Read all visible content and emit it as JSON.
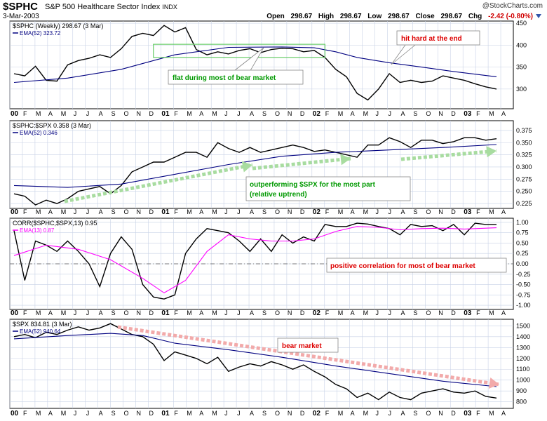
{
  "header": {
    "ticker": "$SPHC",
    "name": "S&P 500 Healthcare Sector Index",
    "index_tag": "INDX",
    "watermark": "@StockCharts.com",
    "date": "3-Mar-2003",
    "open_label": "Open",
    "open": "298.67",
    "high_label": "High",
    "high": "298.67",
    "low_label": "Low",
    "low": "298.67",
    "close_label": "Close",
    "close": "298.67",
    "chg_label": "Chg",
    "chg": "-2.42 (-0.80%)"
  },
  "colors": {
    "bg": "#ffffff",
    "grid": "#c8d2e6",
    "line": "#000000",
    "ema": "#000080",
    "ema_pink": "#ff00ff",
    "annot_green": "#009900",
    "annot_red": "#dd0000",
    "arrow_green": "#a8dca0",
    "arrow_red": "#f2aaaa",
    "box_green": "#66cc66"
  },
  "x_axis": {
    "labels": [
      "00",
      "F",
      "M",
      "A",
      "M",
      "J",
      "J",
      "A",
      "S",
      "O",
      "N",
      "D",
      "01",
      "F",
      "M",
      "A",
      "M",
      "J",
      "J",
      "A",
      "S",
      "O",
      "N",
      "D",
      "02",
      "F",
      "M",
      "A",
      "M",
      "J",
      "J",
      "A",
      "S",
      "O",
      "N",
      "D",
      "03",
      "F",
      "M",
      "A"
    ],
    "bold": [
      "00",
      "01",
      "02",
      "03"
    ]
  },
  "panels": {
    "price": {
      "legend1": "$SPHC (Weekly) 298.67 (3 Mar)",
      "legend2": "EMA(52) 323.72",
      "yticks": [
        "450",
        "400",
        "350",
        "300"
      ],
      "annot_flat": "flat during most of bear market",
      "annot_hit": "hit hard at the end"
    },
    "ratio": {
      "legend1": "$SPHC:$SPX 0.358 (3 Mar)",
      "legend2": "EMA(52) 0.346",
      "yticks": [
        "0.375",
        "0.350",
        "0.325",
        "0.300",
        "0.275",
        "0.250",
        "0.225"
      ],
      "annot1": "outperforming $SPX for the most part",
      "annot2": "(relative uptrend)"
    },
    "corr": {
      "legend1": "CORR($SPHC,$SPX,13) 0.95",
      "legend2": "EMA(13) 0.87",
      "yticks": [
        "1.00",
        "0.75",
        "0.50",
        "0.25",
        "0.00",
        "-0.25",
        "-0.50",
        "-0.75",
        "-1.00"
      ],
      "annot": "positive correlation for most of bear market"
    },
    "spx": {
      "legend1": "$SPX 834.81 (3 Mar)",
      "legend2": "EMA(52) 940.64",
      "yticks": [
        "1500",
        "1400",
        "1300",
        "1200",
        "1100",
        "1000",
        "900",
        "800"
      ],
      "annot": "bear market"
    }
  },
  "chart_data": [
    {
      "type": "line",
      "title": "$SPHC (Weekly) S&P 500 Healthcare Sector Index",
      "ylim": [
        255,
        455
      ],
      "series": [
        {
          "name": "$SPHC",
          "points": [
            [
              0,
              335
            ],
            [
              1,
              330
            ],
            [
              2,
              352
            ],
            [
              3,
              320
            ],
            [
              4,
              318
            ],
            [
              5,
              355
            ],
            [
              6,
              365
            ],
            [
              7,
              370
            ],
            [
              8,
              378
            ],
            [
              9,
              372
            ],
            [
              10,
              392
            ],
            [
              11,
              420
            ],
            [
              12,
              427
            ],
            [
              13,
              422
            ],
            [
              14,
              445
            ],
            [
              15,
              430
            ],
            [
              16,
              440
            ],
            [
              17,
              390
            ],
            [
              18,
              378
            ],
            [
              19,
              385
            ],
            [
              20,
              380
            ],
            [
              21,
              388
            ],
            [
              22,
              392
            ],
            [
              23,
              383
            ],
            [
              24,
              390
            ],
            [
              25,
              393
            ],
            [
              26,
              392
            ],
            [
              27,
              385
            ],
            [
              28,
              388
            ],
            [
              29,
              372
            ],
            [
              30,
              345
            ],
            [
              31,
              328
            ],
            [
              32,
              290
            ],
            [
              33,
              275
            ],
            [
              34,
              300
            ],
            [
              35,
              335
            ],
            [
              36,
              315
            ],
            [
              37,
              320
            ],
            [
              38,
              315
            ],
            [
              39,
              318
            ],
            [
              40,
              330
            ],
            [
              41,
              325
            ],
            [
              42,
              320
            ],
            [
              43,
              312
            ],
            [
              44,
              305
            ],
            [
              45,
              300
            ]
          ]
        },
        {
          "name": "EMA(52)",
          "points": [
            [
              0,
              315
            ],
            [
              5,
              325
            ],
            [
              10,
              345
            ],
            [
              15,
              378
            ],
            [
              20,
              395
            ],
            [
              25,
              396
            ],
            [
              28,
              394
            ],
            [
              30,
              385
            ],
            [
              32,
              372
            ],
            [
              35,
              360
            ],
            [
              38,
              350
            ],
            [
              41,
              340
            ],
            [
              45,
              328
            ]
          ]
        }
      ],
      "annotations": [
        "flat during most of bear market",
        "hit hard at the end"
      ]
    },
    {
      "type": "line",
      "title": "$SPHC:$SPX",
      "ylim": [
        0.215,
        0.395
      ],
      "series": [
        {
          "name": "$SPHC:$SPX",
          "points": [
            [
              0,
              0.245
            ],
            [
              1,
              0.24
            ],
            [
              2,
              0.222
            ],
            [
              3,
              0.232
            ],
            [
              4,
              0.225
            ],
            [
              5,
              0.235
            ],
            [
              6,
              0.25
            ],
            [
              7,
              0.255
            ],
            [
              8,
              0.26
            ],
            [
              9,
              0.245
            ],
            [
              10,
              0.262
            ],
            [
              11,
              0.29
            ],
            [
              12,
              0.3
            ],
            [
              13,
              0.31
            ],
            [
              14,
              0.31
            ],
            [
              15,
              0.32
            ],
            [
              16,
              0.33
            ],
            [
              17,
              0.33
            ],
            [
              18,
              0.32
            ],
            [
              19,
              0.35
            ],
            [
              20,
              0.338
            ],
            [
              21,
              0.33
            ],
            [
              22,
              0.34
            ],
            [
              23,
              0.33
            ],
            [
              24,
              0.335
            ],
            [
              25,
              0.34
            ],
            [
              26,
              0.345
            ],
            [
              27,
              0.34
            ],
            [
              28,
              0.332
            ],
            [
              29,
              0.335
            ],
            [
              30,
              0.33
            ],
            [
              31,
              0.325
            ],
            [
              32,
              0.32
            ],
            [
              33,
              0.345
            ],
            [
              34,
              0.345
            ],
            [
              35,
              0.36
            ],
            [
              36,
              0.352
            ],
            [
              37,
              0.34
            ],
            [
              38,
              0.355
            ],
            [
              39,
              0.355
            ],
            [
              40,
              0.348
            ],
            [
              41,
              0.352
            ],
            [
              42,
              0.36
            ],
            [
              43,
              0.36
            ],
            [
              44,
              0.355
            ],
            [
              45,
              0.358
            ]
          ]
        },
        {
          "name": "EMA(52)",
          "points": [
            [
              0,
              0.262
            ],
            [
              5,
              0.258
            ],
            [
              10,
              0.265
            ],
            [
              15,
              0.285
            ],
            [
              20,
              0.305
            ],
            [
              25,
              0.322
            ],
            [
              30,
              0.33
            ],
            [
              35,
              0.335
            ],
            [
              40,
              0.34
            ],
            [
              45,
              0.346
            ]
          ]
        }
      ],
      "annotations": [
        "outperforming $SPX for the most part",
        "(relative uptrend)"
      ]
    },
    {
      "type": "line",
      "title": "CORR($SPHC,$SPX,13)",
      "ylim": [
        -1.1,
        1.1
      ],
      "series": [
        {
          "name": "CORR",
          "points": [
            [
              0,
              0.8
            ],
            [
              1,
              -0.4
            ],
            [
              2,
              0.55
            ],
            [
              3,
              0.45
            ],
            [
              4,
              0.3
            ],
            [
              5,
              0.55
            ],
            [
              6,
              0.3
            ],
            [
              7,
              0.0
            ],
            [
              8,
              -0.55
            ],
            [
              9,
              0.25
            ],
            [
              10,
              0.65
            ],
            [
              11,
              0.35
            ],
            [
              12,
              -0.5
            ],
            [
              13,
              -0.8
            ],
            [
              14,
              -0.85
            ],
            [
              15,
              -0.75
            ],
            [
              16,
              0.25
            ],
            [
              17,
              0.6
            ],
            [
              18,
              0.85
            ],
            [
              19,
              0.8
            ],
            [
              20,
              0.75
            ],
            [
              21,
              0.55
            ],
            [
              22,
              0.3
            ],
            [
              23,
              0.6
            ],
            [
              24,
              0.3
            ],
            [
              25,
              0.7
            ],
            [
              26,
              0.5
            ],
            [
              27,
              0.65
            ],
            [
              28,
              0.55
            ],
            [
              29,
              0.95
            ],
            [
              30,
              0.9
            ],
            [
              31,
              0.9
            ],
            [
              32,
              0.98
            ],
            [
              33,
              0.96
            ],
            [
              34,
              0.9
            ],
            [
              35,
              0.85
            ],
            [
              36,
              0.7
            ],
            [
              37,
              0.95
            ],
            [
              38,
              0.9
            ],
            [
              39,
              0.92
            ],
            [
              40,
              0.8
            ],
            [
              41,
              0.95
            ],
            [
              42,
              0.7
            ],
            [
              43,
              0.98
            ],
            [
              44,
              0.95
            ],
            [
              45,
              0.95
            ]
          ]
        },
        {
          "name": "EMA(13)",
          "points": [
            [
              0,
              0.2
            ],
            [
              3,
              0.45
            ],
            [
              6,
              0.35
            ],
            [
              9,
              0.1
            ],
            [
              12,
              -0.35
            ],
            [
              14,
              -0.7
            ],
            [
              16,
              -0.4
            ],
            [
              18,
              0.3
            ],
            [
              20,
              0.7
            ],
            [
              22,
              0.6
            ],
            [
              24,
              0.55
            ],
            [
              26,
              0.55
            ],
            [
              28,
              0.6
            ],
            [
              30,
              0.78
            ],
            [
              32,
              0.9
            ],
            [
              34,
              0.88
            ],
            [
              36,
              0.82
            ],
            [
              38,
              0.85
            ],
            [
              40,
              0.86
            ],
            [
              42,
              0.84
            ],
            [
              45,
              0.87
            ]
          ]
        }
      ],
      "annotations": [
        "positive correlation for most of bear market"
      ]
    },
    {
      "type": "line",
      "title": "$SPX",
      "ylim": [
        740,
        1560
      ],
      "series": [
        {
          "name": "$SPX",
          "points": [
            [
              0,
              1400
            ],
            [
              1,
              1420
            ],
            [
              2,
              1390
            ],
            [
              3,
              1440
            ],
            [
              4,
              1420
            ],
            [
              5,
              1460
            ],
            [
              6,
              1490
            ],
            [
              7,
              1460
            ],
            [
              8,
              1480
            ],
            [
              9,
              1520
            ],
            [
              10,
              1470
            ],
            [
              11,
              1420
            ],
            [
              12,
              1400
            ],
            [
              13,
              1330
            ],
            [
              14,
              1180
            ],
            [
              15,
              1260
            ],
            [
              16,
              1230
            ],
            [
              17,
              1200
            ],
            [
              18,
              1150
            ],
            [
              19,
              1210
            ],
            [
              20,
              1080
            ],
            [
              21,
              1120
            ],
            [
              22,
              1150
            ],
            [
              23,
              1130
            ],
            [
              24,
              1170
            ],
            [
              25,
              1140
            ],
            [
              26,
              1100
            ],
            [
              27,
              1140
            ],
            [
              28,
              1080
            ],
            [
              29,
              1030
            ],
            [
              30,
              960
            ],
            [
              31,
              920
            ],
            [
              32,
              840
            ],
            [
              33,
              880
            ],
            [
              34,
              820
            ],
            [
              35,
              890
            ],
            [
              36,
              840
            ],
            [
              37,
              820
            ],
            [
              38,
              880
            ],
            [
              39,
              900
            ],
            [
              40,
              920
            ],
            [
              41,
              890
            ],
            [
              42,
              880
            ],
            [
              43,
              900
            ],
            [
              44,
              850
            ],
            [
              45,
              835
            ]
          ]
        },
        {
          "name": "EMA(52)",
          "points": [
            [
              0,
              1380
            ],
            [
              5,
              1410
            ],
            [
              9,
              1430
            ],
            [
              12,
              1410
            ],
            [
              15,
              1340
            ],
            [
              20,
              1280
            ],
            [
              25,
              1210
            ],
            [
              30,
              1130
            ],
            [
              35,
              1060
            ],
            [
              40,
              990
            ],
            [
              45,
              940
            ]
          ]
        }
      ],
      "annotations": [
        "bear market"
      ]
    }
  ]
}
